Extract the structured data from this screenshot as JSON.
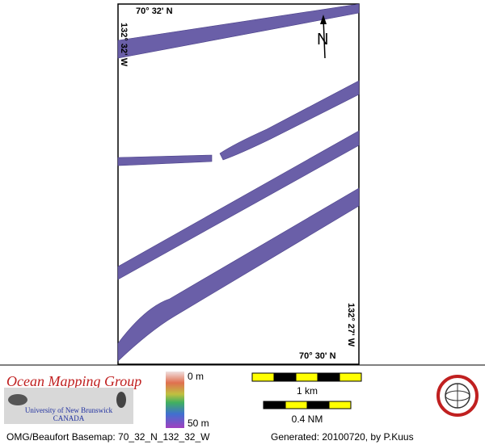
{
  "map": {
    "labels": {
      "lat_top": "70° 32' N",
      "lat_bottom": "70° 30' N",
      "lon_left": "132° 32' W",
      "lon_right": "132° 27' W",
      "north": "N"
    },
    "legend": {
      "org": "Ocean Mapping Group",
      "university": "University of New Brunswick",
      "country": "CANADA",
      "depth_min": "0 m",
      "depth_max": "50 m",
      "scale_km": "1 km",
      "scale_nm": "0.4 NM"
    },
    "footer": {
      "basemap": "OMG/Beaufort Basemap: 70_32_N_132_32_W",
      "generated": "Generated: 20100720, by P.Kuus"
    }
  }
}
